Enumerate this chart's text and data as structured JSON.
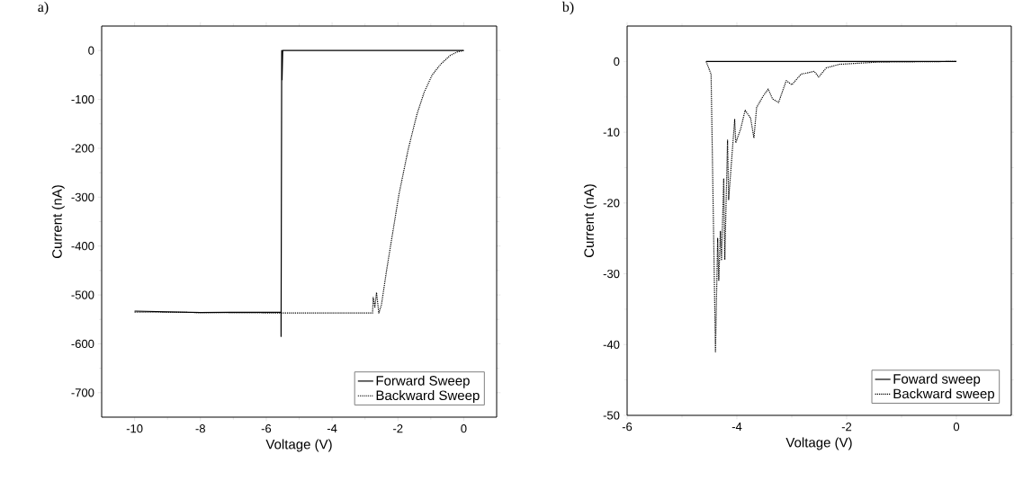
{
  "chart_data": [
    {
      "type": "line",
      "title": "a)",
      "xlabel": "Voltage (V)",
      "ylabel": "Current (nA)",
      "xlim": [
        -11,
        1
      ],
      "ylim": [
        -750,
        50
      ],
      "xticks": [
        -10,
        -8,
        -6,
        -4,
        -2,
        0
      ],
      "yticks": [
        -700,
        -600,
        -500,
        -400,
        -300,
        -200,
        -100,
        0
      ],
      "legend": "bottom right",
      "marker": "none",
      "grid": false,
      "series": [
        {
          "name": "Forward Sweep",
          "color": "#000000",
          "line_style": "solid",
          "x": [
            0,
            -5.5,
            -5.52,
            -5.53,
            -5.55,
            -5.55,
            -8,
            -10
          ],
          "values": [
            0,
            0,
            -60,
            0,
            -585,
            -535,
            -536,
            -533
          ]
        },
        {
          "name": "Backward Sweep",
          "color": "#000000",
          "line_style": "dotted",
          "x": [
            -10,
            -5.55,
            -2.77,
            -2.75,
            -2.7,
            -2.65,
            -2.58,
            -2.5,
            -2.34,
            -2.2,
            -1.97,
            -1.69,
            -1.55,
            -1.42,
            -1.2,
            -0.96,
            -0.7,
            -0.41,
            -0.2,
            0
          ],
          "values": [
            -535,
            -537,
            -537,
            -505,
            -525,
            -495,
            -537,
            -520,
            -448,
            -390,
            -295,
            -203,
            -165,
            -130,
            -85,
            -50,
            -28,
            -10,
            -3,
            0
          ]
        }
      ]
    },
    {
      "type": "line",
      "title": "b)",
      "xlabel": "Voltage (V)",
      "ylabel": "Current (nA)",
      "xlim": [
        -6,
        1
      ],
      "ylim": [
        -50,
        5
      ],
      "xticks": [
        -6,
        -4,
        -2,
        0
      ],
      "yticks": [
        -50,
        -40,
        -30,
        -20,
        -10,
        0
      ],
      "legend": "bottom right",
      "marker": "none",
      "grid": false,
      "series": [
        {
          "name": "Foward sweep",
          "color": "#000000",
          "line_style": "solid",
          "x": [
            -4.56,
            0
          ],
          "values": [
            0,
            0
          ]
        },
        {
          "name": "Backward sweep",
          "color": "#000000",
          "line_style": "dotted",
          "x": [
            -4.56,
            -4.47,
            -4.39,
            -4.35,
            -4.33,
            -4.3,
            -4.28,
            -4.24,
            -4.22,
            -4.17,
            -4.15,
            -4.04,
            -4.02,
            -3.93,
            -3.85,
            -3.75,
            -3.69,
            -3.64,
            -3.53,
            -3.43,
            -3.35,
            -3.24,
            -3.1,
            -3.0,
            -2.83,
            -2.59,
            -2.51,
            -2.37,
            -2.13,
            -1.43,
            0
          ],
          "values": [
            0,
            -1.8,
            -41,
            -25,
            -31,
            -24,
            -28,
            -16.6,
            -28,
            -11.1,
            -19.5,
            -8.2,
            -11.5,
            -9.5,
            -6.9,
            -8,
            -10.8,
            -6.5,
            -5,
            -3.9,
            -5.3,
            -5.8,
            -2.7,
            -3.3,
            -1.8,
            -1.4,
            -2.2,
            -0.9,
            -0.4,
            -0.1,
            0
          ]
        }
      ]
    }
  ]
}
